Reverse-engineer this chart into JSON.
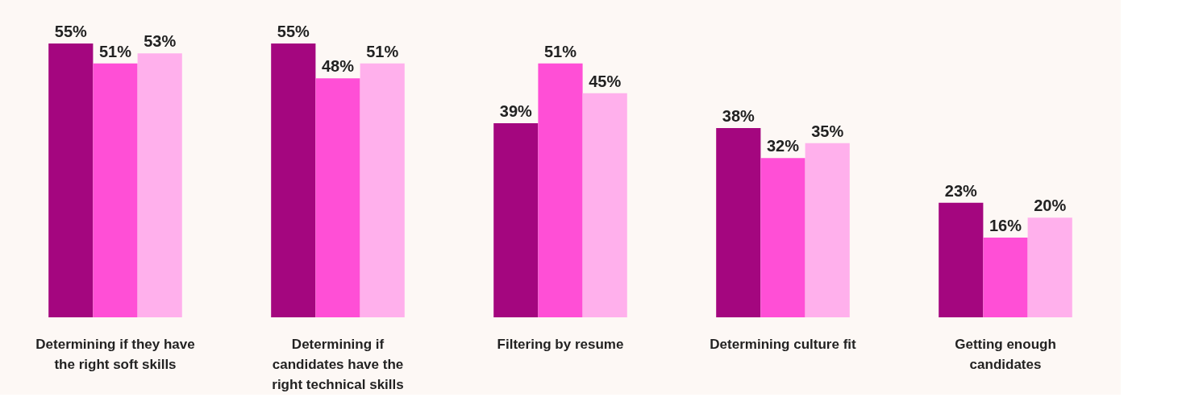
{
  "chart_data": {
    "type": "bar",
    "categories": [
      "Determining if they have\nthe right soft skills",
      "Determining if\ncandidates have the\nright technical skills",
      "Filtering by resume",
      "Determining culture fit",
      "Getting enough\ncandidates"
    ],
    "series": [
      {
        "color": "#a4067f",
        "values": [
          55,
          55,
          39,
          38,
          23
        ],
        "value_labels": [
          "55%",
          "55%",
          "39%",
          "38%",
          "23%"
        ]
      },
      {
        "color": "#ff4fd6",
        "values": [
          51,
          48,
          51,
          32,
          16
        ],
        "value_labels": [
          "51%",
          "48%",
          "51%",
          "32%",
          "16%"
        ]
      },
      {
        "color": "#ffb0ec",
        "values": [
          53,
          51,
          45,
          35,
          20
        ],
        "value_labels": [
          "53%",
          "51%",
          "45%",
          "35%",
          "20%"
        ]
      }
    ],
    "tick_labels": "x",
    "grid": false,
    "legend": false
  }
}
